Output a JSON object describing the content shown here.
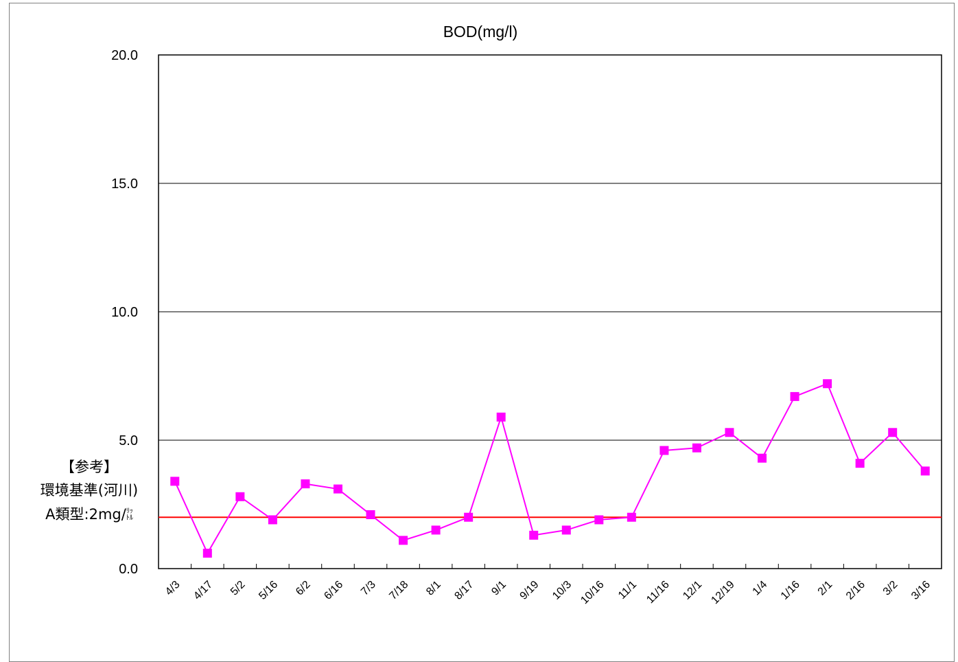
{
  "chart_data": {
    "type": "line",
    "title": "BOD(mg/l)",
    "xlabel": "",
    "ylabel": "",
    "ylim": [
      0,
      20
    ],
    "yticks": [
      "0.0",
      "5.0",
      "10.0",
      "15.0",
      "20.0"
    ],
    "grid": "horizontal",
    "categories": [
      "4/3",
      "4/17",
      "5/2",
      "5/16",
      "6/2",
      "6/16",
      "7/3",
      "7/18",
      "8/1",
      "8/17",
      "9/1",
      "9/19",
      "10/3",
      "10/16",
      "11/1",
      "11/16",
      "12/1",
      "12/19",
      "1/4",
      "1/16",
      "2/1",
      "2/16",
      "3/2",
      "3/16"
    ],
    "series": [
      {
        "values": [
          3.4,
          0.6,
          2.8,
          1.9,
          3.3,
          3.1,
          2.1,
          1.1,
          1.5,
          2.0,
          5.9,
          1.3,
          1.5,
          1.9,
          2.0,
          4.6,
          4.7,
          5.3,
          4.3,
          6.7,
          7.2,
          4.1,
          5.3,
          3.8
        ],
        "color": "#ff00ff",
        "marker": "square"
      }
    ],
    "reference_line": {
      "value": 2.0,
      "color": "#ff0000"
    },
    "annotation": {
      "line1": "【参考】",
      "line2": "環境基準(河川)",
      "line3_prefix": "A類型:2mg/",
      "line3_unit_top": "ﾘｯ",
      "line3_unit_bottom": "ﾄﾙ"
    }
  }
}
